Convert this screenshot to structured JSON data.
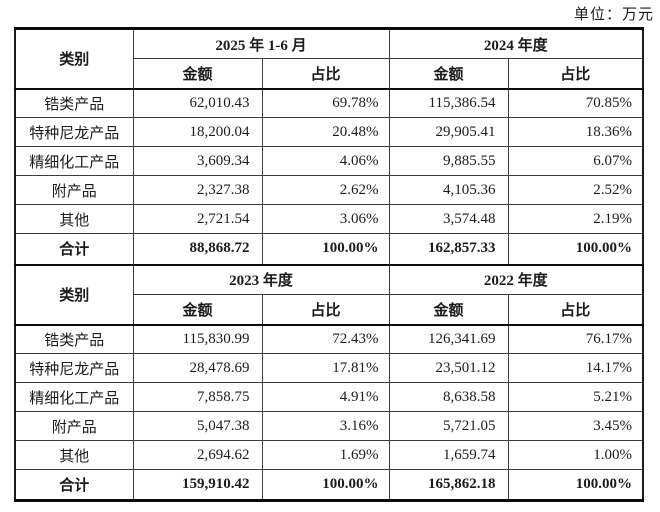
{
  "unit_label": "单位：万元",
  "table1": {
    "category_header": "类别",
    "period_a": "2025 年 1-6 月",
    "period_b": "2024 年度",
    "amount_label": "金额",
    "ratio_label": "占比",
    "rows": [
      {
        "category": "锆类产品",
        "amount_a": "62,010.43",
        "ratio_a": "69.78%",
        "amount_b": "115,386.54",
        "ratio_b": "70.85%"
      },
      {
        "category": "特种尼龙产品",
        "amount_a": "18,200.04",
        "ratio_a": "20.48%",
        "amount_b": "29,905.41",
        "ratio_b": "18.36%"
      },
      {
        "category": "精细化工产品",
        "amount_a": "3,609.34",
        "ratio_a": "4.06%",
        "amount_b": "9,885.55",
        "ratio_b": "6.07%"
      },
      {
        "category": "附产品",
        "amount_a": "2,327.38",
        "ratio_a": "2.62%",
        "amount_b": "4,105.36",
        "ratio_b": "2.52%"
      },
      {
        "category": "其他",
        "amount_a": "2,721.54",
        "ratio_a": "3.06%",
        "amount_b": "3,574.48",
        "ratio_b": "2.19%"
      }
    ],
    "total": {
      "category": "合计",
      "amount_a": "88,868.72",
      "ratio_a": "100.00%",
      "amount_b": "162,857.33",
      "ratio_b": "100.00%"
    }
  },
  "table2": {
    "category_header": "类别",
    "period_a": "2023 年度",
    "period_b": "2022 年度",
    "amount_label": "金额",
    "ratio_label": "占比",
    "rows": [
      {
        "category": "锆类产品",
        "amount_a": "115,830.99",
        "ratio_a": "72.43%",
        "amount_b": "126,341.69",
        "ratio_b": "76.17%"
      },
      {
        "category": "特种尼龙产品",
        "amount_a": "28,478.69",
        "ratio_a": "17.81%",
        "amount_b": "23,501.12",
        "ratio_b": "14.17%"
      },
      {
        "category": "精细化工产品",
        "amount_a": "7,858.75",
        "ratio_a": "4.91%",
        "amount_b": "8,638.58",
        "ratio_b": "5.21%"
      },
      {
        "category": "附产品",
        "amount_a": "5,047.38",
        "ratio_a": "3.16%",
        "amount_b": "5,721.05",
        "ratio_b": "3.45%"
      },
      {
        "category": "其他",
        "amount_a": "2,694.62",
        "ratio_a": "1.69%",
        "amount_b": "1,659.74",
        "ratio_b": "1.00%"
      }
    ],
    "total": {
      "category": "合计",
      "amount_a": "159,910.42",
      "ratio_a": "100.00%",
      "amount_b": "165,862.18",
      "ratio_b": "100.00%"
    }
  }
}
